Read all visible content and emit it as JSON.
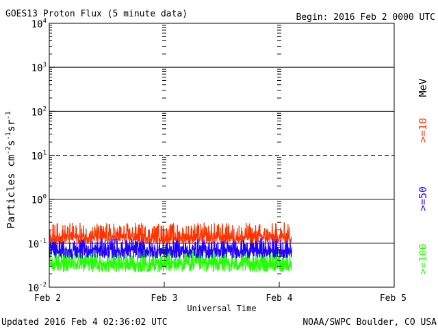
{
  "chart_data": {
    "type": "line",
    "title": "GOES13 Proton Flux (5 minute data)",
    "begin_label": "Begin: 2016 Feb 2 0000 UTC",
    "xlabel": "Universal Time",
    "ylabel": "Particles cm-2s-1sr-1",
    "y_scale": "log",
    "ylim_exponents": [
      -2,
      4
    ],
    "yticks": [
      {
        "base": "10",
        "exp": "-2",
        "value": 0.01
      },
      {
        "base": "10",
        "exp": "-1",
        "value": 0.1
      },
      {
        "base": "10",
        "exp": "0",
        "value": 1
      },
      {
        "base": "10",
        "exp": "1",
        "value": 10
      },
      {
        "base": "10",
        "exp": "2",
        "value": 100
      },
      {
        "base": "10",
        "exp": "3",
        "value": 1000
      },
      {
        "base": "10",
        "exp": "4",
        "value": 10000
      }
    ],
    "xlim_days": [
      0,
      3
    ],
    "xticks": [
      {
        "label": "Feb 2",
        "day": 0
      },
      {
        "label": "Feb 3",
        "day": 1
      },
      {
        "label": "Feb 4",
        "day": 2
      },
      {
        "label": "Feb 5",
        "day": 3
      }
    ],
    "dashed_threshold": 10,
    "data_end_day": 2.108,
    "energy_unit": "MeV",
    "series": [
      {
        "name": ">=10",
        "color": "#ff3300",
        "typical": 0.14,
        "min": 0.1,
        "max": 0.3
      },
      {
        "name": ">=50",
        "color": "#2200ff",
        "typical": 0.07,
        "min": 0.045,
        "max": 0.14
      },
      {
        "name": ">=100",
        "color": "#22ff00",
        "typical": 0.035,
        "min": 0.022,
        "max": 0.08
      }
    ]
  },
  "footer": {
    "updated": "Updated 2016 Feb  4 02:36:02 UTC",
    "source": "NOAA/SWPC Boulder, CO USA"
  }
}
